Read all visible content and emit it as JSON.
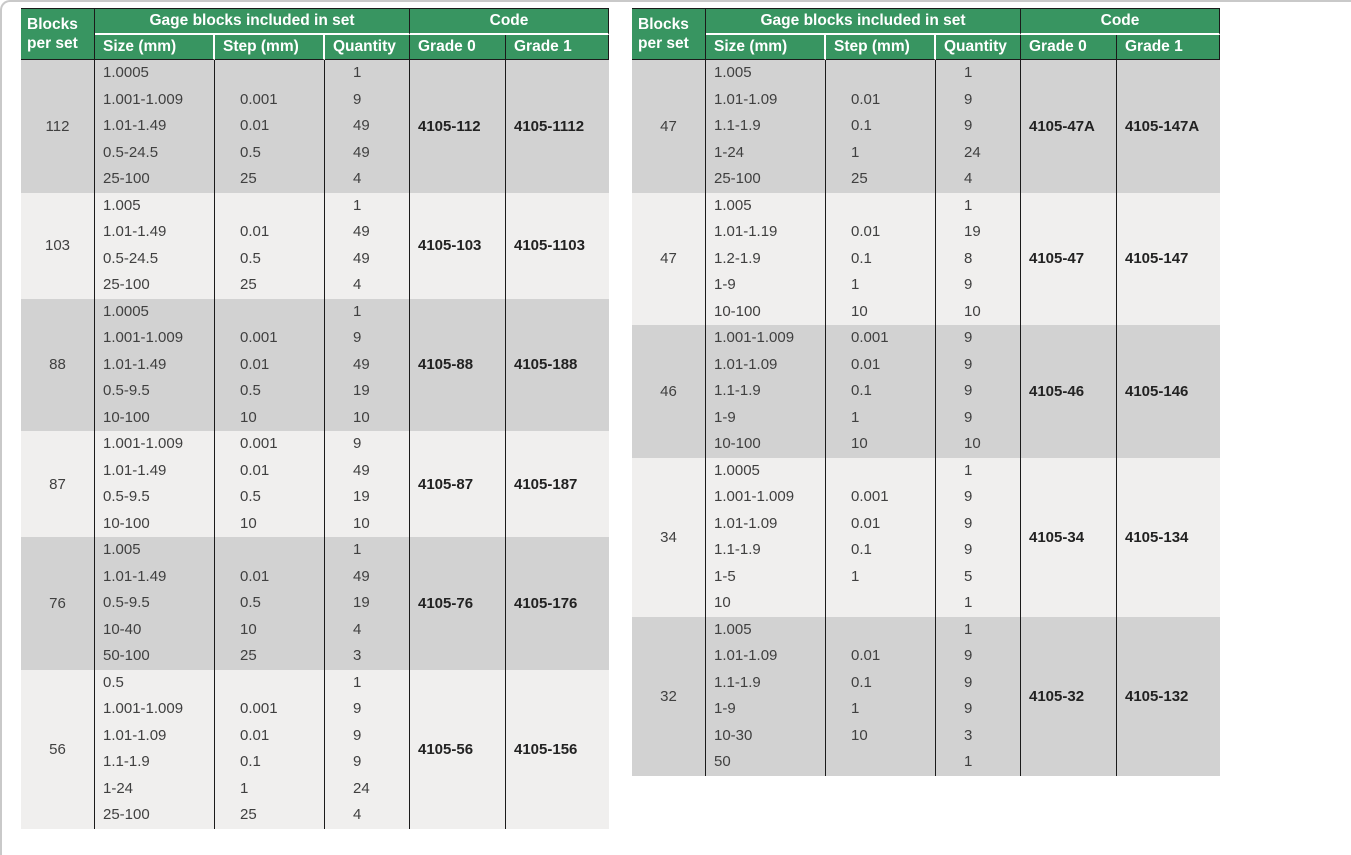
{
  "colors": {
    "header_green": "#389561",
    "row_dark": "#d2d2d2",
    "row_light": "#f0efee",
    "grid_line": "#1b1b1b",
    "header_text": "#ffffff",
    "body_text": "#404040",
    "code_text": "#222222"
  },
  "headers": {
    "blocks_per_set": "Blocks\nper set",
    "group_gage": "Gage blocks included in set",
    "group_code": "Code",
    "size": "Size (mm)",
    "step": "Step (mm)",
    "quantity": "Quantity",
    "grade0": "Grade 0",
    "grade1": "Grade 1"
  },
  "tables": [
    {
      "rows": [
        {
          "blocks": "112",
          "lines": [
            {
              "size": "1.0005",
              "step": "",
              "qty": "1"
            },
            {
              "size": "1.001-1.009",
              "step": "0.001",
              "qty": "9"
            },
            {
              "size": "1.01-1.49",
              "step": "0.01",
              "qty": "49"
            },
            {
              "size": "0.5-24.5",
              "step": "0.5",
              "qty": "49"
            },
            {
              "size": "25-100",
              "step": "25",
              "qty": "4"
            }
          ],
          "grade0": "4105-112",
          "grade1": "4105-1112"
        },
        {
          "blocks": "103",
          "lines": [
            {
              "size": "1.005",
              "step": "",
              "qty": "1"
            },
            {
              "size": "1.01-1.49",
              "step": "0.01",
              "qty": "49"
            },
            {
              "size": "0.5-24.5",
              "step": "0.5",
              "qty": "49"
            },
            {
              "size": "25-100",
              "step": "25",
              "qty": "4"
            }
          ],
          "grade0": "4105-103",
          "grade1": "4105-1103"
        },
        {
          "blocks": "88",
          "lines": [
            {
              "size": "1.0005",
              "step": "",
              "qty": "1"
            },
            {
              "size": "1.001-1.009",
              "step": "0.001",
              "qty": "9"
            },
            {
              "size": "1.01-1.49",
              "step": "0.01",
              "qty": "49"
            },
            {
              "size": "0.5-9.5",
              "step": "0.5",
              "qty": "19"
            },
            {
              "size": "10-100",
              "step": "10",
              "qty": "10"
            }
          ],
          "grade0": "4105-88",
          "grade1": "4105-188"
        },
        {
          "blocks": "87",
          "lines": [
            {
              "size": "1.001-1.009",
              "step": "0.001",
              "qty": "9"
            },
            {
              "size": "1.01-1.49",
              "step": "0.01",
              "qty": "49"
            },
            {
              "size": "0.5-9.5",
              "step": "0.5",
              "qty": "19"
            },
            {
              "size": "10-100",
              "step": "10",
              "qty": "10"
            }
          ],
          "grade0": "4105-87",
          "grade1": "4105-187"
        },
        {
          "blocks": "76",
          "lines": [
            {
              "size": "1.005",
              "step": "",
              "qty": "1"
            },
            {
              "size": "1.01-1.49",
              "step": "0.01",
              "qty": "49"
            },
            {
              "size": "0.5-9.5",
              "step": "0.5",
              "qty": "19"
            },
            {
              "size": "10-40",
              "step": "10",
              "qty": "4"
            },
            {
              "size": "50-100",
              "step": "25",
              "qty": "3"
            }
          ],
          "grade0": "4105-76",
          "grade1": "4105-176"
        },
        {
          "blocks": "56",
          "lines": [
            {
              "size": "0.5",
              "step": "",
              "qty": "1"
            },
            {
              "size": "1.001-1.009",
              "step": "0.001",
              "qty": "9"
            },
            {
              "size": "1.01-1.09",
              "step": "0.01",
              "qty": "9"
            },
            {
              "size": "1.1-1.9",
              "step": "0.1",
              "qty": "9"
            },
            {
              "size": "1-24",
              "step": "1",
              "qty": "24"
            },
            {
              "size": "25-100",
              "step": "25",
              "qty": "4"
            }
          ],
          "grade0": "4105-56",
          "grade1": "4105-156"
        }
      ]
    },
    {
      "rows": [
        {
          "blocks": "47",
          "lines": [
            {
              "size": "1.005",
              "step": "",
              "qty": "1"
            },
            {
              "size": "1.01-1.09",
              "step": "0.01",
              "qty": "9"
            },
            {
              "size": "1.1-1.9",
              "step": "0.1",
              "qty": "9"
            },
            {
              "size": "1-24",
              "step": "1",
              "qty": "24"
            },
            {
              "size": "25-100",
              "step": "25",
              "qty": "4"
            }
          ],
          "grade0": "4105-47A",
          "grade1": "4105-147A"
        },
        {
          "blocks": "47",
          "lines": [
            {
              "size": "1.005",
              "step": "",
              "qty": "1"
            },
            {
              "size": "1.01-1.19",
              "step": "0.01",
              "qty": "19"
            },
            {
              "size": "1.2-1.9",
              "step": "0.1",
              "qty": "8"
            },
            {
              "size": "1-9",
              "step": "1",
              "qty": "9"
            },
            {
              "size": "10-100",
              "step": "10",
              "qty": "10"
            }
          ],
          "grade0": "4105-47",
          "grade1": "4105-147"
        },
        {
          "blocks": "46",
          "lines": [
            {
              "size": "1.001-1.009",
              "step": "0.001",
              "qty": "9"
            },
            {
              "size": "1.01-1.09",
              "step": "0.01",
              "qty": "9"
            },
            {
              "size": "1.1-1.9",
              "step": "0.1",
              "qty": "9"
            },
            {
              "size": "1-9",
              "step": "1",
              "qty": "9"
            },
            {
              "size": "10-100",
              "step": "10",
              "qty": "10"
            }
          ],
          "grade0": "4105-46",
          "grade1": "4105-146"
        },
        {
          "blocks": "34",
          "lines": [
            {
              "size": "1.0005",
              "step": "",
              "qty": "1"
            },
            {
              "size": "1.001-1.009",
              "step": "0.001",
              "qty": "9"
            },
            {
              "size": "1.01-1.09",
              "step": "0.01",
              "qty": "9"
            },
            {
              "size": "1.1-1.9",
              "step": "0.1",
              "qty": "9"
            },
            {
              "size": "1-5",
              "step": "1",
              "qty": "5"
            },
            {
              "size": "10",
              "step": "",
              "qty": "1"
            }
          ],
          "grade0": "4105-34",
          "grade1": "4105-134"
        },
        {
          "blocks": "32",
          "lines": [
            {
              "size": "1.005",
              "step": "",
              "qty": "1"
            },
            {
              "size": "1.01-1.09",
              "step": "0.01",
              "qty": "9"
            },
            {
              "size": "1.1-1.9",
              "step": "0.1",
              "qty": "9"
            },
            {
              "size": "1-9",
              "step": "1",
              "qty": "9"
            },
            {
              "size": "10-30",
              "step": "10",
              "qty": "3"
            },
            {
              "size": "50",
              "step": "",
              "qty": "1"
            }
          ],
          "grade0": "4105-32",
          "grade1": "4105-132"
        }
      ]
    }
  ]
}
